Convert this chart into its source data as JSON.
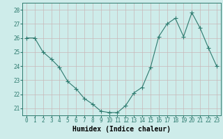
{
  "x": [
    0,
    1,
    2,
    3,
    4,
    5,
    6,
    7,
    8,
    9,
    10,
    11,
    12,
    13,
    14,
    15,
    16,
    17,
    18,
    19,
    20,
    21,
    22,
    23
  ],
  "y": [
    26.0,
    26.0,
    25.0,
    24.5,
    23.9,
    22.9,
    22.4,
    21.7,
    21.3,
    20.8,
    20.7,
    20.7,
    21.2,
    22.1,
    22.5,
    23.9,
    26.1,
    27.0,
    27.4,
    26.1,
    27.8,
    26.7,
    25.3,
    24.0
  ],
  "xlabel": "Humidex (Indice chaleur)",
  "ylim": [
    20.5,
    28.5
  ],
  "yticks": [
    21,
    22,
    23,
    24,
    25,
    26,
    27,
    28
  ],
  "xticks": [
    0,
    1,
    2,
    3,
    4,
    5,
    6,
    7,
    8,
    9,
    10,
    11,
    12,
    13,
    14,
    15,
    16,
    17,
    18,
    19,
    20,
    21,
    22,
    23
  ],
  "line_color": "#2d7a6e",
  "marker": "+",
  "marker_size": 4.0,
  "bg_color": "#ceecea",
  "grid_color_v": "#c8b8b8",
  "grid_color_h": "#c8b8b8",
  "tick_label_fontsize": 5.5,
  "xlabel_fontsize": 7.0,
  "line_width": 0.8
}
